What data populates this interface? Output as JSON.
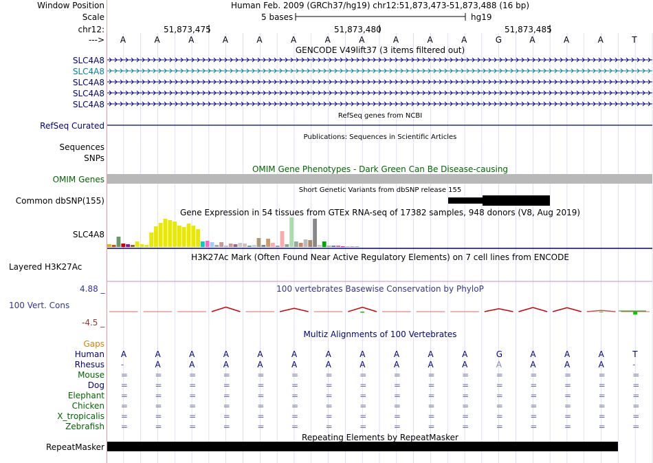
{
  "header": {
    "window_position_label": "Window Position",
    "window_position_value": "Human Feb. 2009 (GRCh37/hg19)   chr12:51,873,473-51,873,488 (16 bp)",
    "scale_label": "Scale",
    "scale_value": "5 bases",
    "scale_db": "hg19",
    "chrom_label": "chr12:",
    "positions": [
      "51,873,475",
      "51,873,480",
      "51,873,485"
    ],
    "strand_label": "--->"
  },
  "colors": {
    "accent_navy": "#000080",
    "omim_green": "#006400",
    "cons_blue": "#333399",
    "expression_yellow": "#e8e800",
    "grid": "#ccccee",
    "gaps_orange": "#e08000"
  },
  "sequence": [
    "A",
    "A",
    "A",
    "A",
    "A",
    "A",
    "A",
    "A",
    "A",
    "A",
    "A",
    "G",
    "A",
    "A",
    "A",
    "T"
  ],
  "gencode": {
    "title": "GENCODE V49lift37 (3 items filtered out)",
    "tracks": [
      "SLC4A8",
      "SLC4A8",
      "SLC4A8",
      "SLC4A8",
      "SLC4A8"
    ]
  },
  "refseq": {
    "title": "RefSeq genes from NCBI",
    "label": "RefSeq Curated"
  },
  "publications": {
    "title": "Publications: Sequences in Scientific Articles",
    "label1": "Sequences",
    "label2": "SNPs"
  },
  "omim": {
    "title": "OMIM Gene Phenotypes - Dark Green Can Be Disease-causing",
    "label": "OMIM Genes"
  },
  "dbsnp": {
    "title": "Short Genetic Variants from dbSNP release 155",
    "label": "Common dbSNP(155)"
  },
  "gtex": {
    "title": "Gene Expression in 54 tissues from GTEx RNA-seq of 17382 samples, 948 donors (V8, Aug 2019)",
    "label": "SLC4A8",
    "values": [
      4,
      3,
      15,
      5,
      4,
      3,
      8,
      4,
      3,
      21,
      30,
      35,
      41,
      39,
      37,
      31,
      29,
      34,
      31,
      26,
      8,
      9,
      7,
      3,
      7,
      2,
      5,
      4,
      6,
      5,
      2,
      3,
      13,
      3,
      12,
      6,
      2,
      23,
      4,
      43,
      8,
      6,
      11,
      10,
      41,
      3,
      8,
      2,
      2,
      2,
      1,
      1,
      1,
      1
    ],
    "colors": [
      "#e8b000",
      "#cc5500",
      "#669966",
      "#cc0000",
      "#aa00aa",
      "#996600",
      "#e8e800",
      "#e8e800",
      "#e8e800",
      "#e8e800",
      "#e8e800",
      "#e8e800",
      "#e8e800",
      "#e8e800",
      "#e8e800",
      "#e8e800",
      "#e8e800",
      "#e8e800",
      "#e8e800",
      "#e8e800",
      "#00cccc",
      "#ff66cc",
      "#99ccff",
      "#aaaaaa",
      "#cc9999",
      "#bbbbbb",
      "#cc9999",
      "#996699",
      "#cccccc",
      "#ddbbbb",
      "#6699cc",
      "#cccccc",
      "#aa9977",
      "#778899",
      "#cc9966",
      "#ffaaaa",
      "#999999",
      "#ffaaaa",
      "#88aa88",
      "#aaddaa",
      "#99aa99",
      "#cc8866",
      "#bbbbbb",
      "#aa8866",
      "#888888",
      "#cccccc",
      "#00aa00",
      "#aaaaaa",
      "#6666ff",
      "#cc66cc",
      "#ff00ff",
      "#aaaaff",
      "#cc88cc",
      "#9999ff"
    ]
  },
  "h3k27ac": {
    "title": "H3K27Ac Mark (Often Found Near Active Regulatory Elements) on 7 cell lines from ENCODE",
    "label": "Layered H3K27Ac"
  },
  "phylop": {
    "title": "100 vertebrates Basewise Conservation by PhyloP",
    "label": "100 Vert. Cons",
    "ymax": "4.88 _",
    "ymin": "-4.5 _",
    "values": [
      -0.3,
      -0.3,
      -0.3,
      2.2,
      -0.4,
      1.6,
      -0.3,
      2.1,
      -0.3,
      -0.3,
      -0.3,
      1.4,
      2.0,
      1.9,
      0.6,
      -0.3
    ],
    "neg": [
      0,
      0,
      0,
      0,
      0,
      0,
      0,
      -0.5,
      0,
      0,
      0,
      0,
      0,
      0,
      -0.3,
      -1.4
    ]
  },
  "multiz": {
    "title": "Multiz Alignments of 100 Vertebrates",
    "gaps_label": "Gaps",
    "species": [
      {
        "name": "Human",
        "color": "#000080",
        "seq": [
          "A",
          "A",
          "A",
          "A",
          "A",
          "A",
          "A",
          "A",
          "A",
          "A",
          "A",
          "G",
          "A",
          "A",
          "A",
          "T"
        ]
      },
      {
        "name": "Rhesus",
        "color": "#000080",
        "seq": [
          "-",
          "A",
          "A",
          "A",
          "A",
          "A",
          "A",
          "A",
          "A",
          "A",
          "A",
          "A",
          "A",
          "A",
          "A",
          "-"
        ]
      },
      {
        "name": "Mouse",
        "color": "#006400",
        "seq": [
          "=",
          "=",
          "=",
          "=",
          "=",
          "=",
          "=",
          "=",
          "=",
          "=",
          "=",
          "=",
          "=",
          "=",
          "=",
          "="
        ]
      },
      {
        "name": "Dog",
        "color": "#000080",
        "seq": [
          "=",
          "=",
          "=",
          "=",
          "=",
          "=",
          "=",
          "=",
          "=",
          "=",
          "=",
          "=",
          "=",
          "=",
          "=",
          "="
        ]
      },
      {
        "name": "Elephant",
        "color": "#006400",
        "seq": [
          "=",
          "=",
          "=",
          "=",
          "=",
          "=",
          "=",
          "=",
          "=",
          "=",
          "=",
          "=",
          "=",
          "=",
          "=",
          "="
        ]
      },
      {
        "name": "Chicken",
        "color": "#006400",
        "seq": [
          "=",
          "=",
          "=",
          "=",
          "=",
          "=",
          "=",
          "=",
          "=",
          "=",
          "=",
          "=",
          "=",
          "=",
          "=",
          "="
        ]
      },
      {
        "name": "X_tropicalis",
        "color": "#006400",
        "seq": [
          "=",
          "=",
          "=",
          "=",
          "=",
          "=",
          "=",
          "=",
          "=",
          "=",
          "=",
          "=",
          "=",
          "=",
          "=",
          "="
        ]
      },
      {
        "name": "Zebrafish",
        "color": "#006400",
        "seq": [
          "=",
          "=",
          "=",
          "=",
          "=",
          "=",
          "=",
          "=",
          "=",
          "=",
          "=",
          "=",
          "=",
          "=",
          "=",
          "="
        ]
      }
    ]
  },
  "repeatmasker": {
    "title": "Repeating Elements by RepeatMasker",
    "label": "RepeatMasker"
  }
}
